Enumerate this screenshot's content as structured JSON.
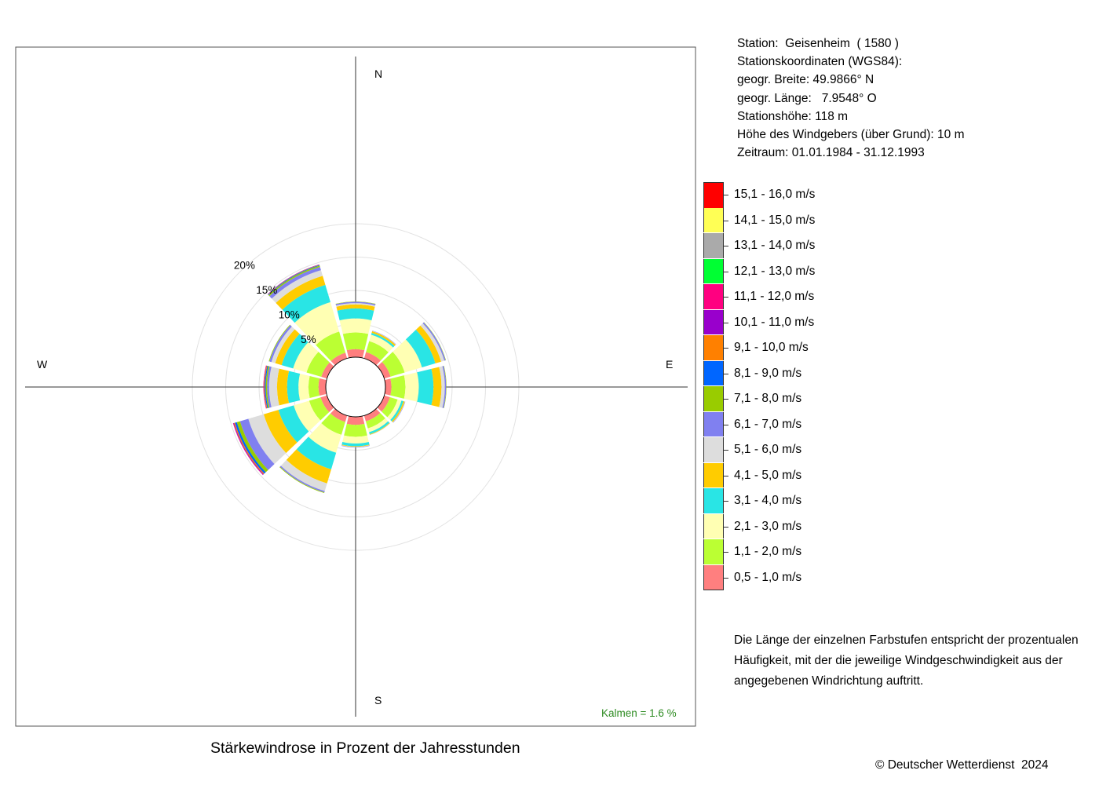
{
  "info": {
    "station": "Station:  Geisenheim  ( 1580 )",
    "coords_heading": "Stationskoordinaten (WGS84):",
    "latitude": "geogr. Breite: 49.9866° N",
    "longitude": "geogr. Länge:   7.9548° O",
    "altitude": "Stationshöhe: 118 m",
    "sensor_height": "Höhe des Windgebers (über Grund): 10 m",
    "period": "Zeitraum: 01.01.1984 - 31.12.1993"
  },
  "note": "Die Länge der einzelnen Farbstufen entspricht der prozentualen Häufigkeit, mit der die jeweilige Windgeschwindigkeit aus der angegebenen Windrichtung auftritt.",
  "copyright": "© Deutscher Wetterdienst  2024",
  "calm": "Kalmen  =  1.6 %",
  "chart_data": {
    "type": "windrose",
    "title": "Stärkewindrose in Prozent der Jahresstunden",
    "compass_labels": [
      "N",
      "E",
      "S",
      "W"
    ],
    "ring_values": [
      5,
      10,
      15,
      20
    ],
    "ring_labels": [
      "5%",
      "10%",
      "15%",
      "20%"
    ],
    "calm_percent": 1.6,
    "speed_classes": [
      {
        "label": "0,5 - 1,0 m/s",
        "color": "#ff7f7f"
      },
      {
        "label": "1,1 - 2,0 m/s",
        "color": "#bbff33"
      },
      {
        "label": "2,1 - 3,0 m/s",
        "color": "#ffffb3"
      },
      {
        "label": "3,1 - 4,0 m/s",
        "color": "#29e5e5"
      },
      {
        "label": "4,1 - 5,0 m/s",
        "color": "#ffcc00"
      },
      {
        "label": "5,1 - 6,0 m/s",
        "color": "#dddddd"
      },
      {
        "label": "6,1 - 7,0 m/s",
        "color": "#8080f0"
      },
      {
        "label": "7,1 - 8,0 m/s",
        "color": "#99cc00"
      },
      {
        "label": "8,1 - 9,0 m/s",
        "color": "#0066ff"
      },
      {
        "label": "9,1 - 10,0 m/s",
        "color": "#ff8000"
      },
      {
        "label": "10,1 - 11,0 m/s",
        "color": "#9900cc"
      },
      {
        "label": "11,1 - 12,0 m/s",
        "color": "#ff0080"
      },
      {
        "label": "12,1 - 13,0 m/s",
        "color": "#00ff33"
      },
      {
        "label": "13,1 - 14,0 m/s",
        "color": "#aaaaaa"
      },
      {
        "label": "14,1 - 15,0 m/s",
        "color": "#ffff55"
      },
      {
        "label": "15,1 - 16,0 m/s",
        "color": "#ff0000"
      }
    ],
    "directions": [
      0,
      30,
      60,
      90,
      120,
      150,
      180,
      210,
      240,
      270,
      300,
      330
    ],
    "values": [
      [
        1.2,
        2.5,
        2.1,
        1.5,
        0.6,
        0.2,
        0.2,
        0.05,
        0,
        0,
        0,
        0,
        0,
        0,
        0,
        0
      ],
      [
        1.0,
        1.7,
        1.0,
        0.3,
        0.25,
        0.05,
        0.05,
        0,
        0,
        0,
        0,
        0,
        0,
        0,
        0,
        0
      ],
      [
        1.0,
        2.2,
        2.7,
        2.1,
        0.9,
        0.5,
        0.2,
        0.05,
        0,
        0,
        0,
        0,
        0,
        0,
        0,
        0
      ],
      [
        0.9,
        2.1,
        2.0,
        2.2,
        1.2,
        0.5,
        0.2,
        0.05,
        0,
        0,
        0,
        0,
        0,
        0,
        0,
        0
      ],
      [
        0.9,
        1.2,
        0.6,
        0.3,
        0.2,
        0.05,
        0.05,
        0,
        0,
        0,
        0,
        0,
        0,
        0,
        0,
        0
      ],
      [
        0.9,
        1.1,
        0.6,
        0.3,
        0.1,
        0.05,
        0,
        0,
        0,
        0,
        0,
        0,
        0,
        0,
        0,
        0
      ],
      [
        1.2,
        1.8,
        1.0,
        0.4,
        0.1,
        0.05,
        0.05,
        0,
        0,
        0,
        0,
        0,
        0,
        0,
        0,
        0
      ],
      [
        1.0,
        2.0,
        2.8,
        2.6,
        2.2,
        1.2,
        0.2,
        0.1,
        0,
        0,
        0,
        0,
        0,
        0,
        0,
        0
      ],
      [
        1.0,
        1.8,
        2.4,
        2.4,
        2.3,
        2.4,
        1.3,
        0.5,
        0.3,
        0.15,
        0.1,
        0.05,
        0,
        0,
        0,
        0
      ],
      [
        1.1,
        1.5,
        1.5,
        1.7,
        1.5,
        1.2,
        0.3,
        0.2,
        0.15,
        0.1,
        0.05,
        0.05,
        0,
        0,
        0,
        0
      ],
      [
        0.9,
        2.3,
        2.1,
        1.8,
        1.0,
        0.6,
        0.3,
        0.1,
        0,
        0,
        0,
        0,
        0,
        0,
        0,
        0
      ],
      [
        0.9,
        3.3,
        4.6,
        2.7,
        1.4,
        0.9,
        0.5,
        0.2,
        0.1,
        0.05,
        0.05,
        0,
        0,
        0,
        0,
        0
      ]
    ]
  }
}
